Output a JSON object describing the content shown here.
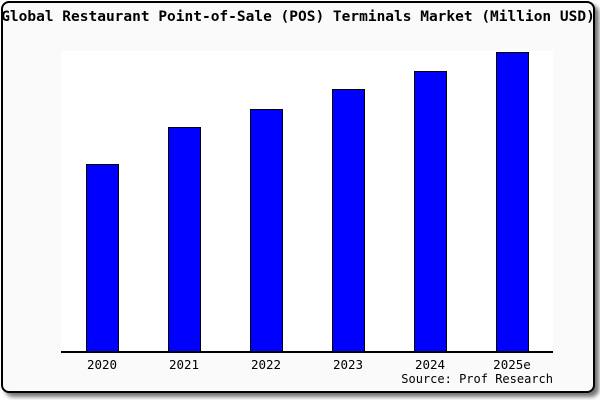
{
  "window": {
    "background": "#fafafa",
    "border_color": "#000000",
    "plot_background": "#ffffff"
  },
  "source": "Source: Prof Research",
  "chart_data": {
    "type": "bar",
    "title": "Global Restaurant Point-of-Sale (POS) Terminals Market (Million USD)",
    "categories": [
      "2020",
      "2021",
      "2022",
      "2023",
      "2024",
      "2025e"
    ],
    "values": [
      62.5,
      75,
      81,
      87.5,
      93.5,
      100
    ],
    "values_note": "y-axis has no tick labels; values are estimated percent of tallest bar (2025e = 100)",
    "xlabel": "",
    "ylabel": "",
    "ylim": [
      0,
      100
    ],
    "grid": false,
    "legend": false,
    "y_axis_labeled": false,
    "bar_color": "#0000ff",
    "bar_border_color": "#000000"
  }
}
